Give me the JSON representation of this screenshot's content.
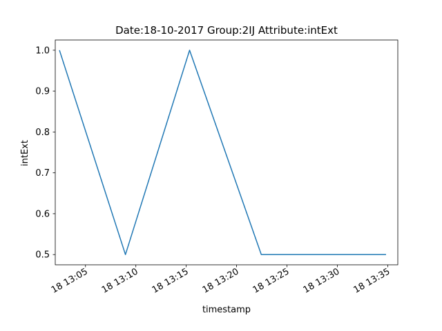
{
  "chart_data": {
    "type": "line",
    "title": "Date:18-10-2017  Group:2IJ Attribute:intExt",
    "xlabel": "timestamp",
    "ylabel": "intExt",
    "x_unit": "time",
    "x_range": [
      "13:02",
      "13:36"
    ],
    "ylim": [
      0.475,
      1.025
    ],
    "x_ticks": [
      {
        "time": "13:05",
        "label": "18 13:05"
      },
      {
        "time": "13:10",
        "label": "18 13:10"
      },
      {
        "time": "13:15",
        "label": "18 13:15"
      },
      {
        "time": "13:20",
        "label": "18 13:20"
      },
      {
        "time": "13:25",
        "label": "18 13:25"
      },
      {
        "time": "13:30",
        "label": "18 13:30"
      },
      {
        "time": "13:35",
        "label": "18 13:35"
      }
    ],
    "y_ticks": [
      {
        "value": 0.5,
        "label": "0.5"
      },
      {
        "value": 0.6,
        "label": "0.6"
      },
      {
        "value": 0.7,
        "label": "0.7"
      },
      {
        "value": 0.8,
        "label": "0.8"
      },
      {
        "value": 0.9,
        "label": "0.9"
      },
      {
        "value": 1.0,
        "label": "1.0"
      }
    ],
    "series": [
      {
        "color": "#1f77b4",
        "points": [
          {
            "x": "13:02:25",
            "y": 1.0
          },
          {
            "x": "13:08:58",
            "y": 0.5
          },
          {
            "x": "13:15:20",
            "y": 1.0
          },
          {
            "x": "13:22:27",
            "y": 0.5
          },
          {
            "x": "13:34:50",
            "y": 0.5
          }
        ]
      }
    ],
    "grid": false,
    "legend": false
  }
}
